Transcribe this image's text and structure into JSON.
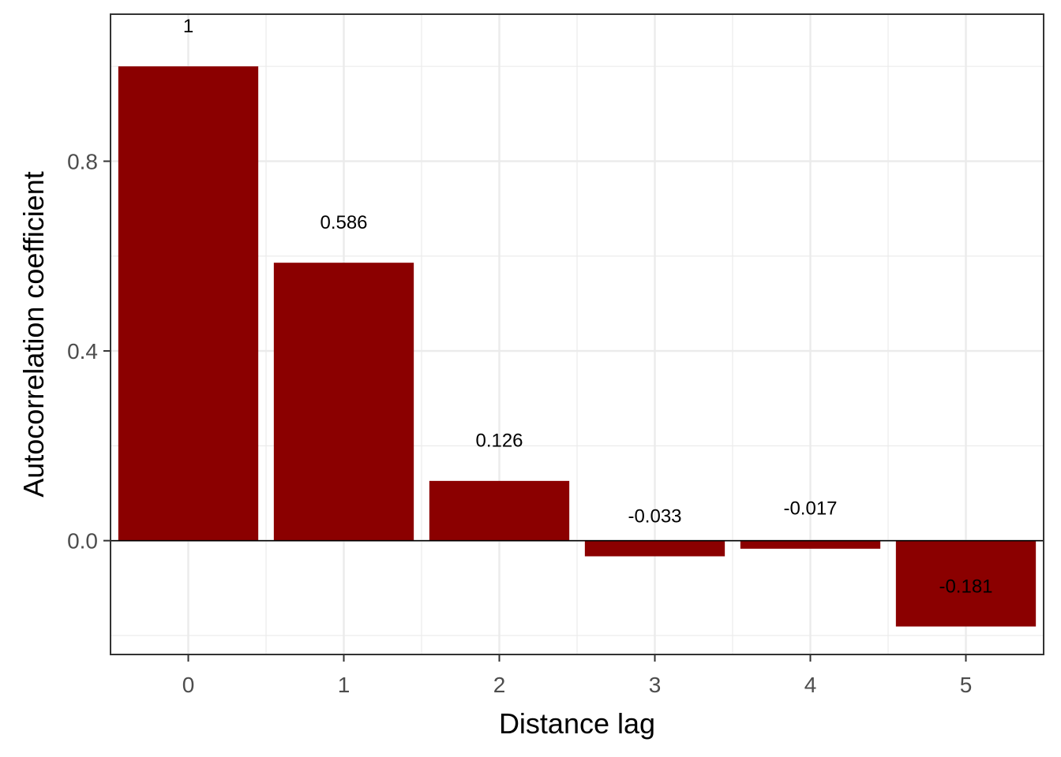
{
  "chart_data": {
    "type": "bar",
    "categories": [
      "0",
      "1",
      "2",
      "3",
      "4",
      "5"
    ],
    "values": [
      1,
      0.586,
      0.126,
      -0.033,
      -0.017,
      -0.181
    ],
    "data_labels": [
      "1",
      "0.586",
      "0.126",
      "-0.033",
      "-0.017",
      "-0.181"
    ],
    "title": "",
    "xlabel": "Distance lag",
    "ylabel": "Autocorrelation coefficient",
    "ylim": [
      -0.24,
      1.11
    ],
    "xlim": [
      -0.5,
      5.5
    ],
    "y_ticks": [
      0.0,
      0.4,
      0.8
    ],
    "y_tick_labels": [
      "0.0",
      "0.4",
      "0.8"
    ],
    "y_minor_ticks": [
      -0.2,
      0.2,
      0.6,
      1.0
    ],
    "x_ticks": [
      0,
      1,
      2,
      3,
      4,
      5
    ],
    "grid": true,
    "zero_line": true,
    "bar_color": "#8b0000",
    "grid_color": "#ebebeb",
    "panel_border_color": "#333333",
    "legend": "none"
  }
}
